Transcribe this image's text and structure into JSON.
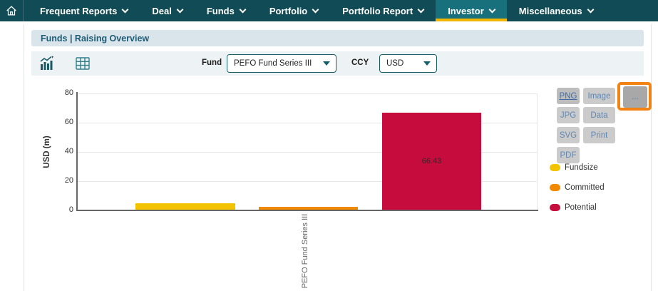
{
  "nav": {
    "items": [
      {
        "label": "Frequent Reports"
      },
      {
        "label": "Deal"
      },
      {
        "label": "Funds"
      },
      {
        "label": "Portfolio"
      },
      {
        "label": "Portfolio Report"
      },
      {
        "label": "Investor",
        "active": true
      },
      {
        "label": "Miscellaneous"
      }
    ]
  },
  "breadcrumb": {
    "text": "Funds | Raising Overview"
  },
  "toolbar": {
    "fund_label": "Fund",
    "fund_value": "PEFO Fund Series III",
    "ccy_label": "CCY",
    "ccy_value": "USD"
  },
  "export_menu": {
    "col1": [
      "PNG",
      "JPG",
      "SVG",
      "PDF"
    ],
    "col2": [
      "Image",
      "Data",
      "Print"
    ],
    "more_label": "...",
    "active_button": "PNG",
    "highlight_color": "#F28313"
  },
  "chart_data": {
    "type": "bar",
    "title": "",
    "categories": [
      "PEFO Fund Series III"
    ],
    "series": [
      {
        "name": "Fundsize",
        "values": [
          4.4
        ],
        "color": "#F3C300",
        "data_label": ""
      },
      {
        "name": "Committed",
        "values": [
          1.9
        ],
        "color": "#F18A00",
        "data_label": ""
      },
      {
        "name": "Potential",
        "values": [
          66.43
        ],
        "color": "#C60C3D",
        "data_label": "66.43"
      }
    ],
    "xlabel": "",
    "ylabel": "USD (m)",
    "ylim": [
      0,
      80
    ],
    "yticks": [
      0,
      20,
      40,
      60,
      80
    ],
    "grid": true,
    "legend_position": "right"
  },
  "colors": {
    "navbar": "#114B55",
    "active_tab": "#17707B",
    "active_tab_underline": "#F2B500",
    "breadcrumb_bg": "#D9E4EB",
    "accent_teal": "#175E68"
  }
}
